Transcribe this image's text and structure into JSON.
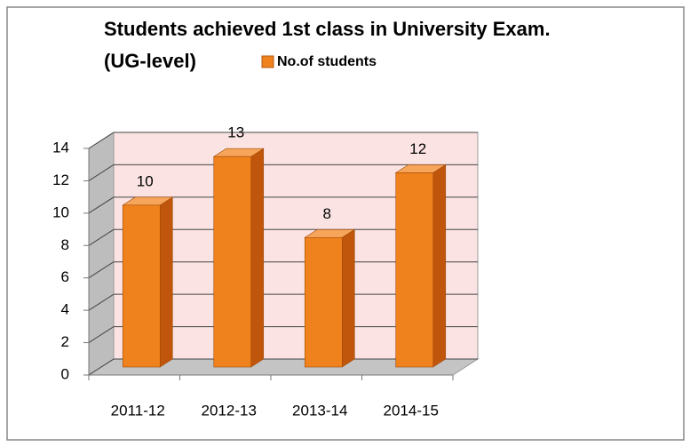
{
  "chart_data": {
    "type": "bar",
    "title": [
      "Students achieved 1st class in University Exam.",
      "(UG-level)"
    ],
    "categories": [
      "2011-12",
      "2012-13",
      "2013-14",
      "2014-15"
    ],
    "series": [
      {
        "name": "No.of students",
        "color": "#f0821e",
        "values": [
          10,
          13,
          8,
          12
        ]
      }
    ],
    "ylim": [
      0,
      14
    ],
    "yticks": [
      0,
      2,
      4,
      6,
      8,
      10,
      12,
      14
    ],
    "grid": true,
    "legend": "top"
  }
}
